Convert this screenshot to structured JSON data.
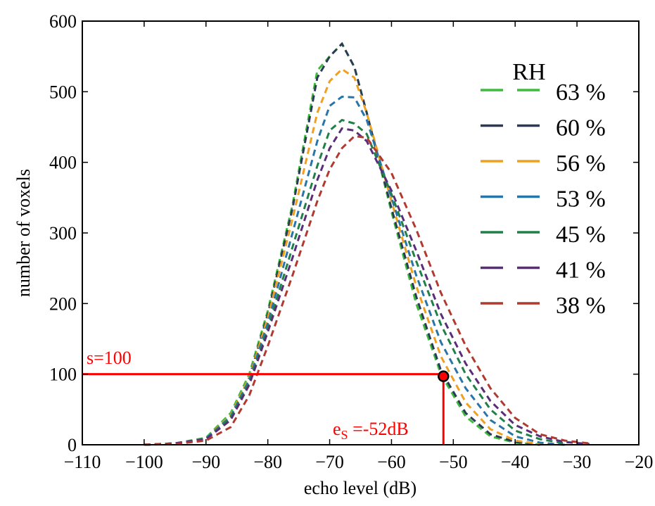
{
  "chart_data": {
    "type": "line",
    "xlabel": "echo level (dB)",
    "ylabel": "number of voxels",
    "xlim": [
      -110,
      -20
    ],
    "ylim": [
      0,
      600
    ],
    "xticks": [
      -110,
      -100,
      -90,
      -80,
      -70,
      -60,
      -50,
      -40,
      -30,
      -20
    ],
    "yticks": [
      0,
      100,
      200,
      300,
      400,
      500,
      600
    ],
    "xtick_labels": [
      "−110",
      "−100",
      "−90",
      "−80",
      "−70",
      "−60",
      "−50",
      "−40",
      "−30",
      "−20"
    ],
    "ytick_labels": [
      "0",
      "100",
      "200",
      "300",
      "400",
      "500",
      "600"
    ],
    "grid": false,
    "legend": {
      "title": "RH",
      "placement": "top-right"
    },
    "x": [
      -100,
      -95,
      -90,
      -86,
      -83,
      -80,
      -76,
      -72,
      -70,
      -68,
      -66,
      -64,
      -60,
      -56,
      -52,
      -48,
      -44,
      -40,
      -36,
      -32,
      -28
    ],
    "series": [
      {
        "name": "63 %",
        "color": "#3dbb3d",
        "values": [
          0,
          2,
          10,
          45,
          100,
          190,
          340,
          530,
          550,
          568,
          535,
          470,
          330,
          200,
          100,
          40,
          12,
          3,
          0,
          null,
          null
        ]
      },
      {
        "name": "60 %",
        "color": "#2b3a55",
        "values": [
          0,
          2,
          8,
          40,
          95,
          185,
          335,
          520,
          550,
          568,
          535,
          470,
          335,
          210,
          105,
          45,
          15,
          4,
          0,
          null,
          null
        ]
      },
      {
        "name": "56 %",
        "color": "#f0a020",
        "values": [
          0,
          2,
          9,
          42,
          95,
          180,
          320,
          470,
          515,
          532,
          520,
          470,
          345,
          225,
          125,
          60,
          22,
          6,
          1,
          0,
          null
        ]
      },
      {
        "name": "53 %",
        "color": "#2a75a8",
        "values": [
          0,
          2,
          9,
          40,
          92,
          172,
          300,
          430,
          480,
          493,
          492,
          460,
          350,
          240,
          145,
          80,
          35,
          12,
          3,
          0,
          null
        ]
      },
      {
        "name": "45 %",
        "color": "#218048",
        "values": [
          0,
          2,
          8,
          38,
          88,
          165,
          280,
          395,
          445,
          460,
          455,
          440,
          355,
          260,
          170,
          100,
          50,
          20,
          8,
          2,
          null
        ]
      },
      {
        "name": "41 %",
        "color": "#5a2d7a",
        "values": [
          0,
          2,
          8,
          35,
          85,
          160,
          265,
          375,
          420,
          448,
          445,
          430,
          360,
          275,
          185,
          115,
          62,
          28,
          12,
          4,
          1
        ]
      },
      {
        "name": "38 %",
        "color": "#b03a30",
        "values": [
          0,
          1,
          6,
          25,
          70,
          140,
          240,
          345,
          390,
          420,
          437,
          435,
          385,
          305,
          215,
          140,
          80,
          38,
          15,
          6,
          2
        ]
      }
    ],
    "annotations": {
      "threshold_label": "s=100",
      "threshold_value": 100,
      "echo_label_main": "e",
      "echo_label_sub": "S",
      "echo_label_rest": " =-52dB",
      "echo_point_x": -51.6,
      "color": "#ff0000"
    }
  }
}
